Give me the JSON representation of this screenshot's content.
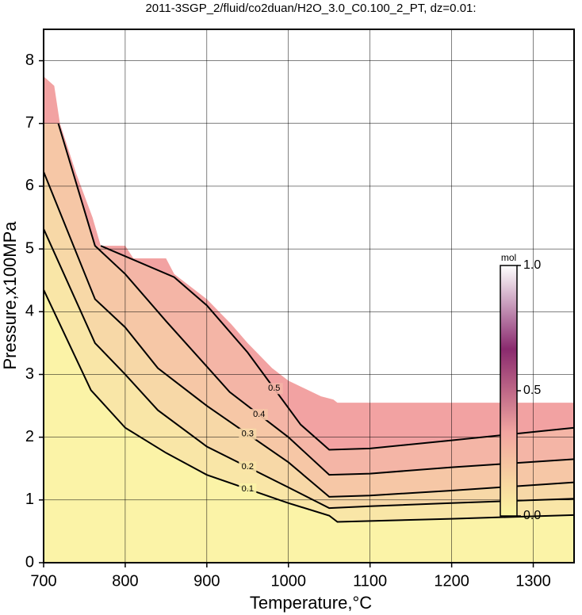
{
  "chart_data": {
    "type": "contour",
    "title": "2011-3SGP_2/fluid/co2duan/H2O_3.0_C0.100_2_PT, dz=0.01:",
    "x_label": "Temperature,°C",
    "y_label": "Pressure,x100MPa",
    "xlim": [
      700,
      1350
    ],
    "ylim": [
      0,
      8.5
    ],
    "xticks": [
      700,
      800,
      900,
      1000,
      1100,
      1200,
      1300
    ],
    "yticks": [
      0,
      1,
      2,
      3,
      4,
      5,
      6,
      7,
      8
    ],
    "grid": true,
    "line_color": "#000000",
    "region": {
      "color": "#f2a2a2",
      "x": [
        700,
        713,
        720,
        740,
        760,
        770,
        800,
        810,
        850,
        860,
        900,
        930,
        950,
        980,
        1000,
        1040,
        1055,
        1060,
        1350
      ],
      "values": [
        7.75,
        7.6,
        7.0,
        6.2,
        5.5,
        5.05,
        5.05,
        4.85,
        4.85,
        4.6,
        4.2,
        3.8,
        3.5,
        3.1,
        2.9,
        2.65,
        2.6,
        2.55,
        2.55
      ]
    },
    "series": [
      {
        "name": "0.5",
        "color": "#f4b5a6",
        "x": [
          770,
          860,
          900,
          950,
          1015,
          1050,
          1100,
          1200,
          1350
        ],
        "values": [
          5.05,
          4.55,
          4.1,
          3.35,
          2.2,
          1.8,
          1.82,
          1.95,
          2.15
        ]
      },
      {
        "name": "0.4",
        "color": "#f6c7a6",
        "x": [
          718,
          763,
          800,
          850,
          928,
          1000,
          1050,
          1100,
          1200,
          1350
        ],
        "values": [
          7.0,
          5.05,
          4.6,
          3.85,
          2.72,
          2.0,
          1.4,
          1.42,
          1.52,
          1.65
        ]
      },
      {
        "name": "0.3",
        "color": "#f7d8a7",
        "x": [
          700,
          763,
          800,
          840,
          900,
          1000,
          1050,
          1100,
          1200,
          1350
        ],
        "values": [
          6.23,
          4.2,
          3.75,
          3.1,
          2.5,
          1.6,
          1.05,
          1.07,
          1.15,
          1.28
        ]
      },
      {
        "name": "0.2",
        "color": "#f9e6a7",
        "x": [
          700,
          763,
          800,
          840,
          900,
          1000,
          1050,
          1100,
          1200,
          1350
        ],
        "values": [
          5.32,
          3.5,
          3.0,
          2.43,
          1.85,
          1.2,
          0.87,
          0.9,
          0.95,
          1.02
        ]
      },
      {
        "name": "0.1",
        "color": "#fbf3a7",
        "x": [
          700,
          758,
          800,
          850,
          900,
          1000,
          1050,
          1060,
          1200,
          1350
        ],
        "values": [
          4.35,
          2.75,
          2.15,
          1.75,
          1.4,
          0.95,
          0.75,
          0.65,
          0.7,
          0.76
        ]
      }
    ],
    "colorbar": {
      "label": "mol",
      "lim": [
        0,
        1
      ],
      "colors": [
        "#fbf7a0",
        "#f2a5a0",
        "#8a2a6e",
        "#ffffff"
      ],
      "ticks": [
        {
          "value": 0,
          "label": "0.0"
        },
        0.5,
        {
          "value": 1,
          "label": "1.0"
        }
      ]
    }
  }
}
